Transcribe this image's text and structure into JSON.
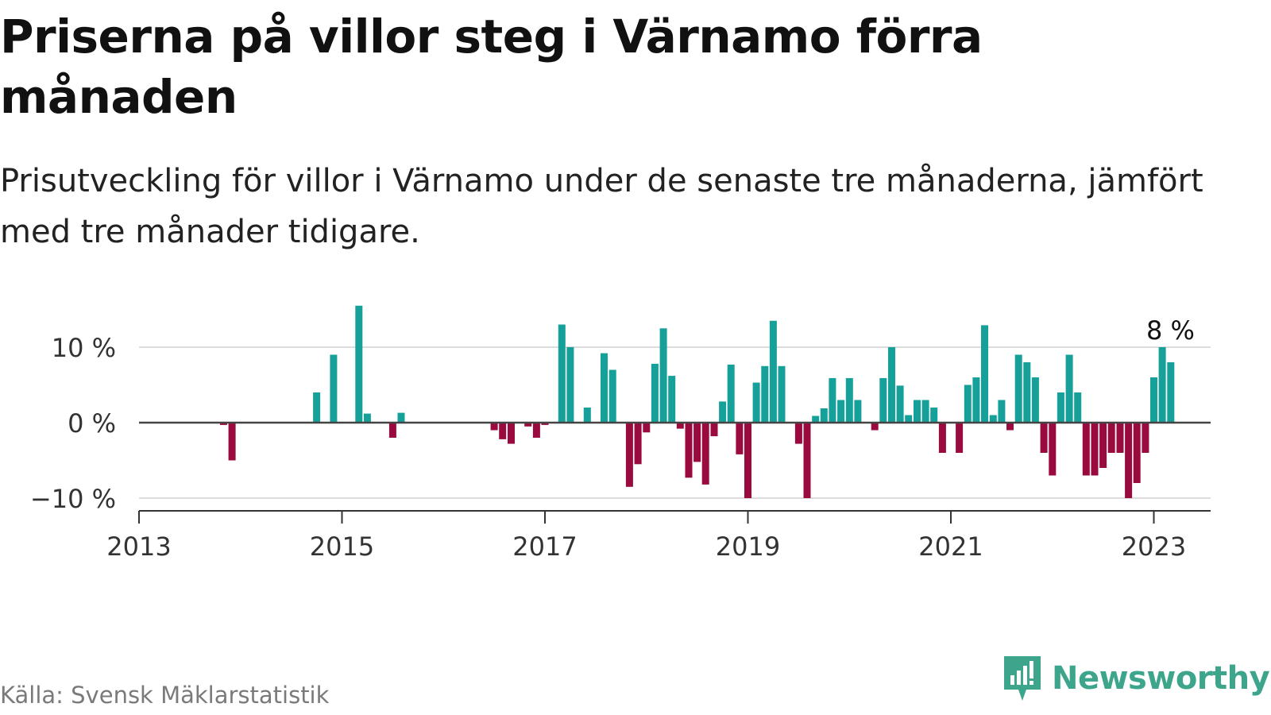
{
  "title": "Priserna på villor steg i Värnamo förra månaden",
  "subtitle": "Prisutveckling för villor i Värnamo under de senaste tre månaderna, jämfört med tre månader tidigare.",
  "source": "Källa: Svensk Mäklarstatistik",
  "brand": "Newsworthy",
  "colors": {
    "positive": "#15a199",
    "negative": "#9a0a3e",
    "grid": "#dcdcdc",
    "zero": "#444444",
    "logo": "#3da58c"
  },
  "chart_data": {
    "type": "bar",
    "title": "Priserna på villor steg i Värnamo förra månaden",
    "xlabel": "",
    "ylabel": "",
    "ylim": [
      -11,
      16
    ],
    "xlim": [
      2013.0,
      2023.6
    ],
    "y_ticks": [
      {
        "value": -10,
        "label": "−10 %"
      },
      {
        "value": 0,
        "label": "0 %"
      },
      {
        "value": 10,
        "label": "10 %"
      }
    ],
    "x_ticks": [
      {
        "value": 2013,
        "label": "2013"
      },
      {
        "value": 2015,
        "label": "2015"
      },
      {
        "value": 2017,
        "label": "2017"
      },
      {
        "value": 2019,
        "label": "2019"
      },
      {
        "value": 2021,
        "label": "2021"
      },
      {
        "value": 2023,
        "label": "2023"
      }
    ],
    "annotation": {
      "label": "8 %",
      "x": 2023.125,
      "y": 8
    },
    "series": [
      {
        "name": "Prisutveckling",
        "x": [
          2013.833,
          2013.917,
          2014.75,
          2014.917,
          2015.167,
          2015.25,
          2015.5,
          2015.583,
          2016.5,
          2016.583,
          2016.667,
          2016.833,
          2016.917,
          2017.0,
          2017.167,
          2017.25,
          2017.417,
          2017.583,
          2017.667,
          2017.833,
          2017.917,
          2018.0,
          2018.083,
          2018.167,
          2018.25,
          2018.333,
          2018.417,
          2018.5,
          2018.583,
          2018.667,
          2018.75,
          2018.833,
          2018.917,
          2019.0,
          2019.083,
          2019.167,
          2019.25,
          2019.333,
          2019.5,
          2019.583,
          2019.667,
          2019.75,
          2019.833,
          2019.917,
          2020.0,
          2020.083,
          2020.25,
          2020.333,
          2020.417,
          2020.5,
          2020.583,
          2020.667,
          2020.75,
          2020.833,
          2020.917,
          2021.083,
          2021.167,
          2021.25,
          2021.333,
          2021.417,
          2021.5,
          2021.583,
          2021.667,
          2021.75,
          2021.833,
          2021.917,
          2022.0,
          2022.083,
          2022.167,
          2022.25,
          2022.333,
          2022.417,
          2022.5,
          2022.583,
          2022.667,
          2022.75,
          2022.833,
          2022.917,
          2023.0,
          2023.083,
          2023.167
        ],
        "values": [
          -0.3,
          -5,
          4,
          9,
          15.5,
          1.2,
          -2,
          1.3,
          -1,
          -2.2,
          -2.8,
          -0.5,
          -2,
          -0.3,
          13,
          10,
          2,
          9.2,
          7,
          -8.5,
          -5.5,
          -1.3,
          7.8,
          12.5,
          6.2,
          -0.8,
          -7.3,
          -5.2,
          -8.2,
          -1.8,
          2.8,
          7.7,
          -4.2,
          -10,
          5.3,
          7.5,
          13.5,
          7.5,
          -2.8,
          -10,
          0.9,
          1.9,
          5.9,
          3,
          5.9,
          3,
          -1,
          5.9,
          10,
          4.9,
          1,
          3,
          3,
          2,
          -4,
          -4,
          5,
          6,
          12.9,
          1,
          3,
          -1,
          9,
          8,
          6,
          -4,
          -7,
          4,
          9,
          4,
          -7,
          -7,
          -6,
          -4,
          -4,
          -10,
          -8,
          -4,
          6,
          10,
          8
        ]
      }
    ]
  }
}
